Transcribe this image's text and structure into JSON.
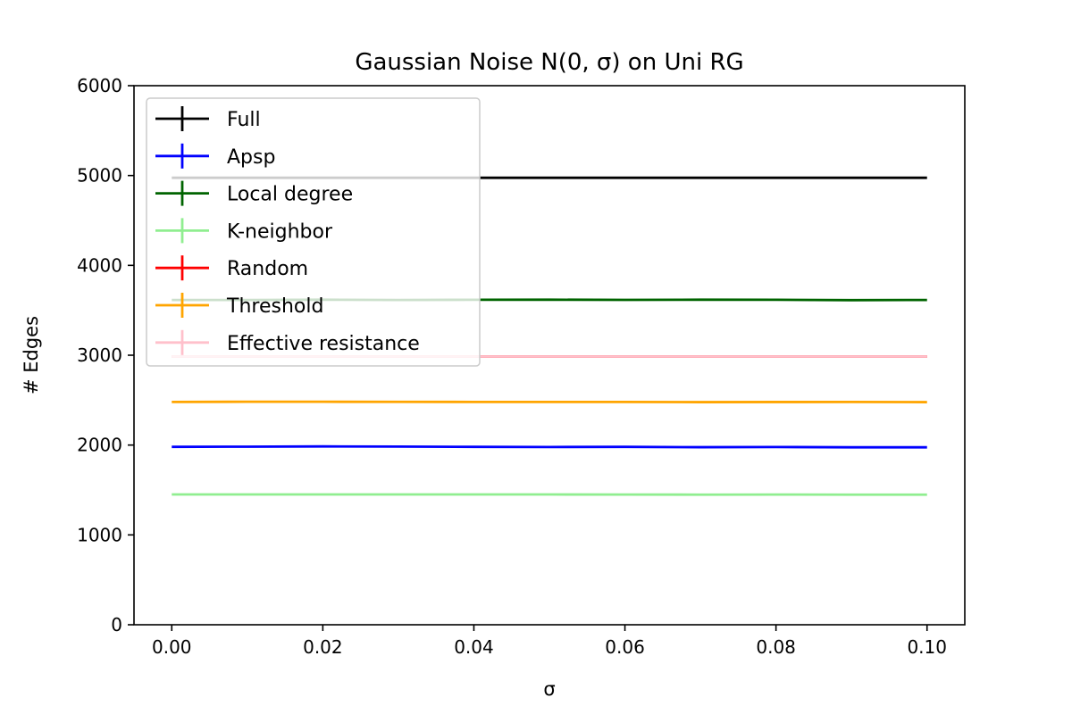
{
  "chart_data": {
    "type": "line",
    "title": "Gaussian Noise N(0, σ) on Uni RG",
    "xlabel": "σ",
    "ylabel": "# Edges",
    "xlim": [
      -0.005,
      0.105
    ],
    "ylim": [
      0,
      6000
    ],
    "x_ticks": [
      "0.00",
      "0.02",
      "0.04",
      "0.06",
      "0.08",
      "0.10"
    ],
    "y_ticks": [
      "0",
      "1000",
      "2000",
      "3000",
      "4000",
      "5000",
      "6000"
    ],
    "grid": false,
    "legend_position": "top-left",
    "x": [
      0.0,
      0.01,
      0.02,
      0.03,
      0.04,
      0.05,
      0.06,
      0.07,
      0.08,
      0.09,
      0.1
    ],
    "series": [
      {
        "name": "Full",
        "color": "#000000",
        "values": [
          4975,
          4975,
          4975,
          4975,
          4975,
          4975,
          4975,
          4975,
          4975,
          4975,
          4975
        ]
      },
      {
        "name": "Apsp",
        "color": "#0000ff",
        "values": [
          1980,
          1982,
          1985,
          1983,
          1980,
          1978,
          1980,
          1976,
          1978,
          1975,
          1975
        ]
      },
      {
        "name": "Local degree",
        "color": "#006400",
        "values": [
          3615,
          3615,
          3618,
          3615,
          3617,
          3618,
          3616,
          3618,
          3617,
          3613,
          3615
        ]
      },
      {
        "name": "K-neighbor",
        "color": "#90ee90",
        "values": [
          1450,
          1450,
          1450,
          1450,
          1450,
          1450,
          1449,
          1448,
          1449,
          1448,
          1448
        ]
      },
      {
        "name": "Random",
        "color": "#ff0000",
        "values": [
          2985,
          2985,
          2985,
          2985,
          2985,
          2985,
          2985,
          2985,
          2985,
          2985,
          2985
        ]
      },
      {
        "name": "Threshold",
        "color": "#ffa500",
        "values": [
          2480,
          2482,
          2482,
          2481,
          2480,
          2480,
          2480,
          2478,
          2479,
          2480,
          2478
        ]
      },
      {
        "name": "Effective resistance",
        "color": "#ffc0cb",
        "values": [
          2985,
          2985,
          2985,
          2985,
          2985,
          2985,
          2985,
          2985,
          2985,
          2985,
          2985
        ]
      }
    ]
  }
}
